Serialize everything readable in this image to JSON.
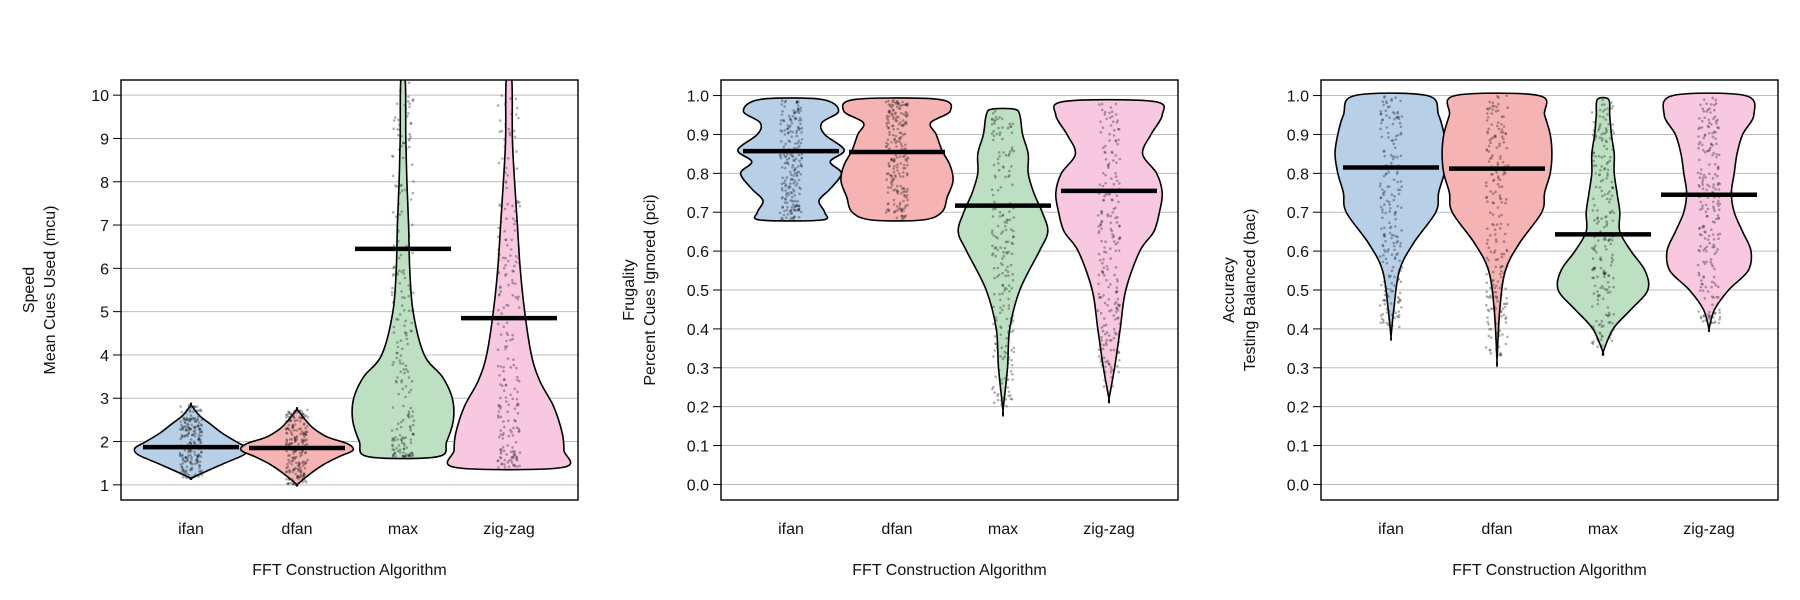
{
  "colors": {
    "ifan": "#b8cfe8",
    "dfan": "#f6b3b3",
    "max": "#bde0c3",
    "zig-zag": "#f7c8df",
    "points": "#1a1a1a",
    "grid": "#bdbdbd"
  },
  "chart_data": [
    {
      "type": "violin",
      "xlabel": "FFT Construction Algorithm",
      "ylabel_line1": "Speed",
      "ylabel_line2": "Mean Cues Used (mcu)",
      "ylim": [
        0.65,
        10.35
      ],
      "yticks": [
        "1",
        "2",
        "3",
        "4",
        "5",
        "6",
        "7",
        "8",
        "9",
        "10"
      ],
      "categories": [
        "ifan",
        "dfan",
        "max",
        "zig-zag"
      ],
      "means": [
        1.87,
        1.85,
        6.45,
        4.85
      ],
      "violins": [
        {
          "profile": [
            [
              1.15,
              0.0
            ],
            [
              1.3,
              0.25
            ],
            [
              1.5,
              0.6
            ],
            [
              1.7,
              0.95
            ],
            [
              1.85,
              1.0
            ],
            [
              2.0,
              0.8
            ],
            [
              2.2,
              0.55
            ],
            [
              2.4,
              0.35
            ],
            [
              2.6,
              0.15
            ],
            [
              2.85,
              0.0
            ]
          ]
        },
        {
          "profile": [
            [
              1.0,
              0.0
            ],
            [
              1.2,
              0.18
            ],
            [
              1.45,
              0.45
            ],
            [
              1.65,
              0.75
            ],
            [
              1.8,
              1.0
            ],
            [
              1.95,
              0.9
            ],
            [
              2.1,
              0.55
            ],
            [
              2.3,
              0.3
            ],
            [
              2.5,
              0.15
            ],
            [
              2.75,
              0.0
            ]
          ]
        },
        {
          "profile": [
            [
              1.65,
              0.62
            ],
            [
              2.0,
              0.78
            ],
            [
              2.5,
              0.9
            ],
            [
              3.0,
              0.88
            ],
            [
              3.5,
              0.7
            ],
            [
              4.0,
              0.38
            ],
            [
              5.0,
              0.18
            ],
            [
              6.0,
              0.12
            ],
            [
              7.0,
              0.1
            ],
            [
              8.0,
              0.07
            ],
            [
              9.0,
              0.05
            ],
            [
              10.35,
              0.04
            ]
          ]
        },
        {
          "profile": [
            [
              1.4,
              0.95
            ],
            [
              1.8,
              0.98
            ],
            [
              2.2,
              0.95
            ],
            [
              2.8,
              0.8
            ],
            [
              3.4,
              0.55
            ],
            [
              4.0,
              0.4
            ],
            [
              5.0,
              0.28
            ],
            [
              6.0,
              0.2
            ],
            [
              7.0,
              0.15
            ],
            [
              8.0,
              0.1
            ],
            [
              9.0,
              0.06
            ],
            [
              10.35,
              0.05
            ]
          ]
        }
      ],
      "point_ranges": [
        [
          1.15,
          2.85
        ],
        [
          1.0,
          2.75
        ],
        [
          1.65,
          10.35
        ],
        [
          1.4,
          10.0
        ]
      ]
    },
    {
      "type": "violin",
      "xlabel": "FFT Construction Algorithm",
      "ylabel_line1": "Frugality",
      "ylabel_line2": "Percent Cues Ignored (pci)",
      "ylim": [
        -0.04,
        1.04
      ],
      "yticks": [
        "0.0",
        "0.1",
        "0.2",
        "0.3",
        "0.4",
        "0.5",
        "0.6",
        "0.7",
        "0.8",
        "0.9",
        "1.0"
      ],
      "categories": [
        "ifan",
        "dfan",
        "max",
        "zig-zag"
      ],
      "means": [
        0.857,
        0.855,
        0.717,
        0.755
      ],
      "violins": [
        {
          "profile": [
            [
              0.68,
              0.55
            ],
            [
              0.7,
              0.6
            ],
            [
              0.73,
              0.5
            ],
            [
              0.76,
              0.7
            ],
            [
              0.8,
              0.9
            ],
            [
              0.83,
              0.7
            ],
            [
              0.86,
              0.95
            ],
            [
              0.9,
              0.6
            ],
            [
              0.93,
              0.55
            ],
            [
              0.96,
              0.85
            ],
            [
              0.99,
              0.55
            ]
          ]
        },
        {
          "profile": [
            [
              0.68,
              0.45
            ],
            [
              0.7,
              0.8
            ],
            [
              0.74,
              0.9
            ],
            [
              0.78,
              1.0
            ],
            [
              0.82,
              0.95
            ],
            [
              0.86,
              0.8
            ],
            [
              0.9,
              0.7
            ],
            [
              0.93,
              0.6
            ],
            [
              0.96,
              0.95
            ],
            [
              0.99,
              0.75
            ]
          ]
        },
        {
          "profile": [
            [
              0.19,
              0.0
            ],
            [
              0.3,
              0.08
            ],
            [
              0.4,
              0.12
            ],
            [
              0.5,
              0.3
            ],
            [
              0.6,
              0.65
            ],
            [
              0.65,
              0.8
            ],
            [
              0.7,
              0.7
            ],
            [
              0.75,
              0.55
            ],
            [
              0.8,
              0.45
            ],
            [
              0.85,
              0.45
            ],
            [
              0.9,
              0.35
            ],
            [
              0.95,
              0.3
            ],
            [
              0.965,
              0.2
            ]
          ]
        },
        {
          "profile": [
            [
              0.22,
              0.0
            ],
            [
              0.3,
              0.1
            ],
            [
              0.4,
              0.2
            ],
            [
              0.5,
              0.3
            ],
            [
              0.6,
              0.55
            ],
            [
              0.65,
              0.8
            ],
            [
              0.7,
              0.9
            ],
            [
              0.75,
              0.95
            ],
            [
              0.8,
              0.85
            ],
            [
              0.85,
              0.6
            ],
            [
              0.9,
              0.75
            ],
            [
              0.95,
              0.95
            ],
            [
              0.985,
              0.8
            ]
          ]
        }
      ],
      "point_ranges": [
        [
          0.68,
          0.99
        ],
        [
          0.68,
          0.99
        ],
        [
          0.2,
          0.96
        ],
        [
          0.25,
          0.98
        ]
      ]
    },
    {
      "type": "violin",
      "xlabel": "FFT Construction Algorithm",
      "ylabel_line1": "Accuracy",
      "ylabel_line2": "Testing Balanced (bac)",
      "ylim": [
        -0.04,
        1.04
      ],
      "yticks": [
        "0.0",
        "0.1",
        "0.2",
        "0.3",
        "0.4",
        "0.5",
        "0.6",
        "0.7",
        "0.8",
        "0.9",
        "1.0"
      ],
      "categories": [
        "ifan",
        "dfan",
        "max",
        "zig-zag"
      ],
      "means": [
        0.815,
        0.812,
        0.643,
        0.745
      ],
      "violins": [
        {
          "profile": [
            [
              0.38,
              0.0
            ],
            [
              0.45,
              0.05
            ],
            [
              0.55,
              0.15
            ],
            [
              0.62,
              0.4
            ],
            [
              0.7,
              0.8
            ],
            [
              0.75,
              0.85
            ],
            [
              0.8,
              0.95
            ],
            [
              0.85,
              1.0
            ],
            [
              0.9,
              0.95
            ],
            [
              0.95,
              0.85
            ],
            [
              1.0,
              0.65
            ]
          ]
        },
        {
          "profile": [
            [
              0.32,
              0.0
            ],
            [
              0.45,
              0.05
            ],
            [
              0.55,
              0.15
            ],
            [
              0.62,
              0.4
            ],
            [
              0.7,
              0.8
            ],
            [
              0.75,
              0.85
            ],
            [
              0.8,
              0.95
            ],
            [
              0.85,
              0.98
            ],
            [
              0.9,
              0.95
            ],
            [
              0.95,
              0.85
            ],
            [
              1.0,
              0.75
            ]
          ]
        },
        {
          "profile": [
            [
              0.34,
              0.0
            ],
            [
              0.4,
              0.18
            ],
            [
              0.45,
              0.5
            ],
            [
              0.5,
              0.8
            ],
            [
              0.55,
              0.75
            ],
            [
              0.6,
              0.5
            ],
            [
              0.65,
              0.3
            ],
            [
              0.7,
              0.3
            ],
            [
              0.75,
              0.25
            ],
            [
              0.8,
              0.2
            ],
            [
              0.85,
              0.2
            ],
            [
              0.9,
              0.15
            ],
            [
              0.95,
              0.12
            ],
            [
              0.99,
              0.1
            ]
          ]
        },
        {
          "profile": [
            [
              0.4,
              0.0
            ],
            [
              0.45,
              0.1
            ],
            [
              0.5,
              0.35
            ],
            [
              0.55,
              0.7
            ],
            [
              0.6,
              0.75
            ],
            [
              0.65,
              0.6
            ],
            [
              0.7,
              0.45
            ],
            [
              0.75,
              0.4
            ],
            [
              0.8,
              0.45
            ],
            [
              0.85,
              0.5
            ],
            [
              0.9,
              0.6
            ],
            [
              0.95,
              0.8
            ],
            [
              1.0,
              0.65
            ]
          ]
        }
      ],
      "point_ranges": [
        [
          0.4,
          1.0
        ],
        [
          0.33,
          1.0
        ],
        [
          0.35,
          0.99
        ],
        [
          0.41,
          1.0
        ]
      ]
    }
  ]
}
